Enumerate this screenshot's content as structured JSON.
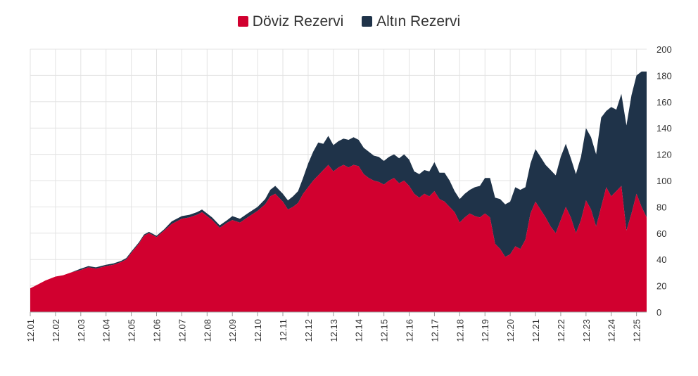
{
  "chart_data": {
    "type": "area",
    "stacked": true,
    "title": "",
    "xlabel": "",
    "ylabel": "",
    "ylim": [
      0,
      200
    ],
    "yticks": [
      0,
      20,
      40,
      60,
      80,
      100,
      120,
      140,
      160,
      180,
      200
    ],
    "y_axis_side": "right",
    "grid": true,
    "legend_position": "top-center",
    "x_start": 2001,
    "x_end": 2025.4,
    "xticks": [
      {
        "value": 2001,
        "label": "12.01"
      },
      {
        "value": 2002,
        "label": "12.02"
      },
      {
        "value": 2003,
        "label": "12.03"
      },
      {
        "value": 2004,
        "label": "12.04"
      },
      {
        "value": 2005,
        "label": "12.05"
      },
      {
        "value": 2006,
        "label": "12.06"
      },
      {
        "value": 2007,
        "label": "12.07"
      },
      {
        "value": 2008,
        "label": "12.08"
      },
      {
        "value": 2009,
        "label": "12.09"
      },
      {
        "value": 2010,
        "label": "12.10"
      },
      {
        "value": 2011,
        "label": "12.11"
      },
      {
        "value": 2012,
        "label": "12.12"
      },
      {
        "value": 2013,
        "label": "12.13"
      },
      {
        "value": 2014,
        "label": "12.14"
      },
      {
        "value": 2015,
        "label": "12.15"
      },
      {
        "value": 2016,
        "label": "12.16"
      },
      {
        "value": 2017,
        "label": "12.17"
      },
      {
        "value": 2018,
        "label": "12.18"
      },
      {
        "value": 2019,
        "label": "12.19"
      },
      {
        "value": 2020,
        "label": "12.20"
      },
      {
        "value": 2021,
        "label": "12.21"
      },
      {
        "value": 2022,
        "label": "12.22"
      },
      {
        "value": 2023,
        "label": "12.23"
      },
      {
        "value": 2024,
        "label": "12.24"
      },
      {
        "value": 2025,
        "label": "12.25"
      }
    ],
    "series": [
      {
        "name": "Döviz Rezervi",
        "color": "#d1002f",
        "points": [
          [
            2001.0,
            18
          ],
          [
            2001.3,
            21
          ],
          [
            2001.6,
            24
          ],
          [
            2002.0,
            27
          ],
          [
            2002.3,
            28
          ],
          [
            2002.6,
            30
          ],
          [
            2003.0,
            32
          ],
          [
            2003.3,
            34
          ],
          [
            2003.6,
            33
          ],
          [
            2004.0,
            35
          ],
          [
            2004.3,
            36
          ],
          [
            2004.6,
            38
          ],
          [
            2004.8,
            40
          ],
          [
            2005.0,
            45
          ],
          [
            2005.3,
            52
          ],
          [
            2005.5,
            58
          ],
          [
            2005.7,
            60
          ],
          [
            2006.0,
            57
          ],
          [
            2006.3,
            62
          ],
          [
            2006.6,
            67
          ],
          [
            2007.0,
            71
          ],
          [
            2007.3,
            72
          ],
          [
            2007.6,
            74
          ],
          [
            2007.8,
            76
          ],
          [
            2008.0,
            73
          ],
          [
            2008.2,
            70
          ],
          [
            2008.5,
            64
          ],
          [
            2008.8,
            68
          ],
          [
            2009.0,
            70
          ],
          [
            2009.3,
            68
          ],
          [
            2009.6,
            72
          ],
          [
            2010.0,
            77
          ],
          [
            2010.3,
            82
          ],
          [
            2010.5,
            88
          ],
          [
            2010.7,
            90
          ],
          [
            2010.9,
            86
          ],
          [
            2011.0,
            84
          ],
          [
            2011.2,
            78
          ],
          [
            2011.4,
            80
          ],
          [
            2011.6,
            83
          ],
          [
            2011.8,
            90
          ],
          [
            2012.0,
            95
          ],
          [
            2012.2,
            100
          ],
          [
            2012.4,
            104
          ],
          [
            2012.6,
            108
          ],
          [
            2012.8,
            112
          ],
          [
            2013.0,
            107
          ],
          [
            2013.2,
            110
          ],
          [
            2013.4,
            112
          ],
          [
            2013.6,
            110
          ],
          [
            2013.8,
            112
          ],
          [
            2014.0,
            111
          ],
          [
            2014.2,
            105
          ],
          [
            2014.4,
            102
          ],
          [
            2014.6,
            100
          ],
          [
            2014.8,
            99
          ],
          [
            2015.0,
            97
          ],
          [
            2015.2,
            100
          ],
          [
            2015.4,
            102
          ],
          [
            2015.6,
            98
          ],
          [
            2015.8,
            100
          ],
          [
            2016.0,
            96
          ],
          [
            2016.2,
            90
          ],
          [
            2016.4,
            87
          ],
          [
            2016.6,
            90
          ],
          [
            2016.8,
            88
          ],
          [
            2017.0,
            92
          ],
          [
            2017.2,
            86
          ],
          [
            2017.4,
            84
          ],
          [
            2017.6,
            80
          ],
          [
            2017.8,
            76
          ],
          [
            2018.0,
            68
          ],
          [
            2018.2,
            72
          ],
          [
            2018.4,
            75
          ],
          [
            2018.6,
            73
          ],
          [
            2018.8,
            72
          ],
          [
            2019.0,
            75
          ],
          [
            2019.2,
            72
          ],
          [
            2019.4,
            52
          ],
          [
            2019.6,
            48
          ],
          [
            2019.8,
            42
          ],
          [
            2020.0,
            44
          ],
          [
            2020.2,
            50
          ],
          [
            2020.4,
            48
          ],
          [
            2020.6,
            55
          ],
          [
            2020.8,
            75
          ],
          [
            2021.0,
            84
          ],
          [
            2021.2,
            78
          ],
          [
            2021.4,
            72
          ],
          [
            2021.6,
            65
          ],
          [
            2021.8,
            60
          ],
          [
            2022.0,
            70
          ],
          [
            2022.2,
            80
          ],
          [
            2022.4,
            72
          ],
          [
            2022.6,
            60
          ],
          [
            2022.8,
            70
          ],
          [
            2023.0,
            85
          ],
          [
            2023.2,
            78
          ],
          [
            2023.4,
            65
          ],
          [
            2023.6,
            80
          ],
          [
            2023.8,
            95
          ],
          [
            2024.0,
            88
          ],
          [
            2024.2,
            92
          ],
          [
            2024.4,
            96
          ],
          [
            2024.6,
            62
          ],
          [
            2024.8,
            75
          ],
          [
            2025.0,
            90
          ],
          [
            2025.2,
            80
          ],
          [
            2025.4,
            72
          ]
        ]
      },
      {
        "name": "Altın Rezervi",
        "color": "#1f3349",
        "points": [
          [
            2001.0,
            0
          ],
          [
            2001.3,
            0
          ],
          [
            2001.6,
            0
          ],
          [
            2002.0,
            0
          ],
          [
            2002.3,
            0
          ],
          [
            2002.6,
            0
          ],
          [
            2003.0,
            1
          ],
          [
            2003.3,
            1
          ],
          [
            2003.6,
            1
          ],
          [
            2004.0,
            1
          ],
          [
            2004.3,
            1
          ],
          [
            2004.6,
            1
          ],
          [
            2004.8,
            1
          ],
          [
            2005.0,
            1
          ],
          [
            2005.3,
            1
          ],
          [
            2005.5,
            1
          ],
          [
            2005.7,
            1
          ],
          [
            2006.0,
            1
          ],
          [
            2006.3,
            1
          ],
          [
            2006.6,
            2
          ],
          [
            2007.0,
            2
          ],
          [
            2007.3,
            2
          ],
          [
            2007.6,
            2
          ],
          [
            2007.8,
            2
          ],
          [
            2008.0,
            2
          ],
          [
            2008.2,
            2
          ],
          [
            2008.5,
            2
          ],
          [
            2008.8,
            2
          ],
          [
            2009.0,
            3
          ],
          [
            2009.3,
            3
          ],
          [
            2009.6,
            3
          ],
          [
            2010.0,
            3
          ],
          [
            2010.3,
            4
          ],
          [
            2010.5,
            5
          ],
          [
            2010.7,
            6
          ],
          [
            2010.9,
            6
          ],
          [
            2011.0,
            6
          ],
          [
            2011.2,
            7
          ],
          [
            2011.4,
            8
          ],
          [
            2011.6,
            9
          ],
          [
            2011.8,
            12
          ],
          [
            2012.0,
            18
          ],
          [
            2012.2,
            22
          ],
          [
            2012.4,
            25
          ],
          [
            2012.6,
            20
          ],
          [
            2012.8,
            22
          ],
          [
            2013.0,
            20
          ],
          [
            2013.2,
            20
          ],
          [
            2013.4,
            20
          ],
          [
            2013.6,
            21
          ],
          [
            2013.8,
            21
          ],
          [
            2014.0,
            20
          ],
          [
            2014.2,
            20
          ],
          [
            2014.4,
            20
          ],
          [
            2014.6,
            19
          ],
          [
            2014.8,
            19
          ],
          [
            2015.0,
            18
          ],
          [
            2015.2,
            18
          ],
          [
            2015.4,
            18
          ],
          [
            2015.6,
            19
          ],
          [
            2015.8,
            20
          ],
          [
            2016.0,
            20
          ],
          [
            2016.2,
            17
          ],
          [
            2016.4,
            18
          ],
          [
            2016.6,
            18
          ],
          [
            2016.8,
            19
          ],
          [
            2017.0,
            22
          ],
          [
            2017.2,
            20
          ],
          [
            2017.4,
            22
          ],
          [
            2017.6,
            20
          ],
          [
            2017.8,
            16
          ],
          [
            2018.0,
            18
          ],
          [
            2018.2,
            18
          ],
          [
            2018.4,
            18
          ],
          [
            2018.6,
            22
          ],
          [
            2018.8,
            24
          ],
          [
            2019.0,
            27
          ],
          [
            2019.2,
            30
          ],
          [
            2019.4,
            35
          ],
          [
            2019.6,
            38
          ],
          [
            2019.8,
            40
          ],
          [
            2020.0,
            40
          ],
          [
            2020.2,
            45
          ],
          [
            2020.4,
            45
          ],
          [
            2020.6,
            40
          ],
          [
            2020.8,
            38
          ],
          [
            2021.0,
            40
          ],
          [
            2021.2,
            40
          ],
          [
            2021.4,
            40
          ],
          [
            2021.6,
            43
          ],
          [
            2021.8,
            44
          ],
          [
            2022.0,
            48
          ],
          [
            2022.2,
            48
          ],
          [
            2022.4,
            45
          ],
          [
            2022.6,
            45
          ],
          [
            2022.8,
            48
          ],
          [
            2023.0,
            55
          ],
          [
            2023.2,
            55
          ],
          [
            2023.4,
            55
          ],
          [
            2023.6,
            68
          ],
          [
            2023.8,
            58
          ],
          [
            2024.0,
            68
          ],
          [
            2024.2,
            62
          ],
          [
            2024.4,
            70
          ],
          [
            2024.6,
            80
          ],
          [
            2024.8,
            90
          ],
          [
            2025.0,
            90
          ],
          [
            2025.2,
            103
          ],
          [
            2025.4,
            111
          ]
        ]
      }
    ]
  }
}
